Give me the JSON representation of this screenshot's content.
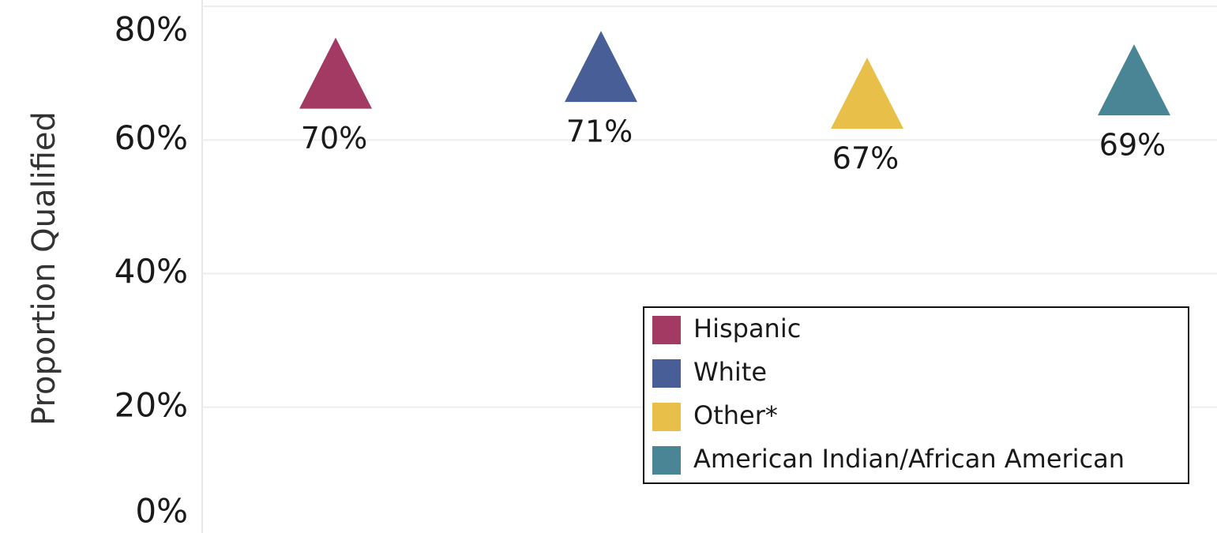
{
  "chart_data": {
    "type": "scatter",
    "y_label": "Proportion Qualified",
    "ylim": [
      0,
      80
    ],
    "yticks": [
      {
        "value": 0,
        "label": "0%"
      },
      {
        "value": 20,
        "label": "20%"
      },
      {
        "value": 40,
        "label": "40%"
      },
      {
        "value": 60,
        "label": "60%"
      },
      {
        "value": 80,
        "label": "80%"
      }
    ],
    "grid": true,
    "marker": "triangle",
    "legend": "lower right",
    "series": [
      {
        "name": "Hispanic",
        "color": "#a33a64",
        "values": [
          70
        ],
        "value_labels": [
          "70%"
        ]
      },
      {
        "name": "White",
        "color": "#475f96",
        "values": [
          71
        ],
        "value_labels": [
          "71%"
        ]
      },
      {
        "name": "Other*",
        "color": "#e8c049",
        "values": [
          67
        ],
        "value_labels": [
          "67%"
        ]
      },
      {
        "name": "American Indian/African American",
        "color": "#4a8595",
        "values": [
          69
        ],
        "value_labels": [
          "69%"
        ]
      }
    ]
  }
}
